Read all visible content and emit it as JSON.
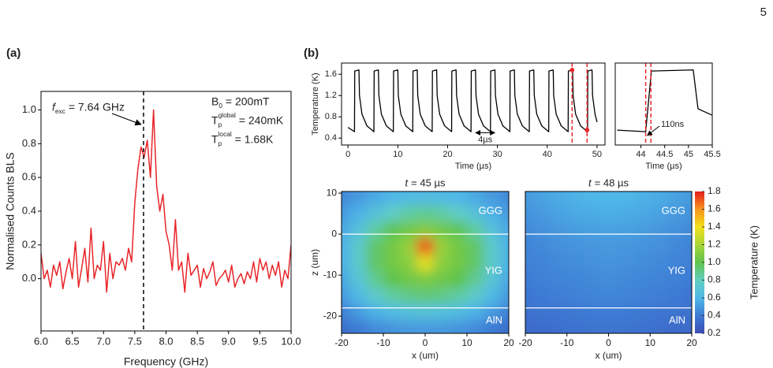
{
  "page_number": "5",
  "chart_data": [
    {
      "type": "line",
      "panel": "(a)",
      "xlabel": "Frequency (GHz)",
      "ylabel": "Normalised Counts BLS",
      "color": "#e8262a",
      "x": [
        6.0,
        6.05,
        6.1,
        6.15,
        6.2,
        6.25,
        6.3,
        6.35,
        6.4,
        6.45,
        6.5,
        6.55,
        6.6,
        6.65,
        6.7,
        6.75,
        6.8,
        6.85,
        6.9,
        6.95,
        7.0,
        7.05,
        7.1,
        7.15,
        7.2,
        7.25,
        7.3,
        7.35,
        7.4,
        7.45,
        7.5,
        7.55,
        7.6,
        7.65,
        7.7,
        7.75,
        7.8,
        7.85,
        7.9,
        7.95,
        8.0,
        8.05,
        8.1,
        8.15,
        8.2,
        8.25,
        8.3,
        8.35,
        8.4,
        8.45,
        8.5,
        8.55,
        8.6,
        8.65,
        8.7,
        8.75,
        8.8,
        8.85,
        8.9,
        8.95,
        9.0,
        9.05,
        9.1,
        9.15,
        9.2,
        9.25,
        9.3,
        9.35,
        9.4,
        9.45,
        9.5,
        9.55,
        9.6,
        9.65,
        9.7,
        9.75,
        9.8,
        9.85,
        9.9,
        9.95,
        10.0
      ],
      "values": [
        0.15,
        0.0,
        0.05,
        -0.05,
        0.08,
        0.02,
        0.1,
        -0.06,
        0.04,
        0.12,
        0.0,
        0.22,
        -0.05,
        0.06,
        0.18,
        -0.02,
        0.3,
        0.0,
        0.08,
        0.05,
        0.22,
        -0.08,
        0.15,
        0.0,
        0.1,
        0.08,
        0.12,
        0.05,
        0.18,
        0.1,
        0.45,
        0.65,
        0.78,
        0.72,
        0.82,
        0.6,
        1.0,
        0.55,
        0.4,
        0.5,
        0.28,
        0.2,
        0.05,
        0.35,
        0.05,
        0.1,
        -0.08,
        0.15,
        0.02,
        0.05,
        0.08,
        -0.05,
        0.06,
        0.0,
        0.04,
        0.1,
        -0.04,
        0.0,
        0.02,
        0.05,
        -0.02,
        0.08,
        -0.05,
        0.0,
        0.03,
        -0.03,
        0.04,
        0.0,
        0.1,
        -0.02,
        0.12,
        0.05,
        0.1,
        0.0,
        0.08,
        0.02,
        0.1,
        -0.05,
        0.05,
        0.0,
        0.2
      ],
      "xlim": [
        6,
        10
      ],
      "ylim": [
        -0.31,
        1.11
      ],
      "xticks": [
        {
          "value": 6,
          "label": "6.0"
        },
        6.5,
        {
          "value": 7,
          "label": "7.0"
        },
        7.5,
        {
          "value": 8,
          "label": "8.0"
        },
        8.5,
        {
          "value": 9,
          "label": "9.0"
        },
        9.5,
        {
          "value": 10,
          "label": "10.0"
        }
      ],
      "yticks": [
        {
          "value": 0,
          "label": "0.0"
        },
        0.2,
        0.4,
        0.6,
        0.8,
        {
          "value": 1,
          "label": "1.0"
        }
      ],
      "vline": 7.64,
      "annotation": {
        "main": "f",
        "sub": "exc",
        "rest": " = 7.64 GHz"
      },
      "params": [
        {
          "main": "B",
          "sub": "0",
          "rest": " = 200mT"
        },
        {
          "main": "T",
          "sub": "p",
          "sup": "global",
          "rest": " = 240mK"
        },
        {
          "main": "T",
          "sub": "p",
          "sup": "local",
          "rest": " = 1.68K"
        }
      ]
    },
    {
      "type": "line",
      "panel": "(b)",
      "xlabel": "Time (µs)",
      "ylabel": "Temperature (K)",
      "color": "#000000",
      "x": [
        0,
        1.3,
        1.35,
        2.2,
        2.3,
        2.8,
        3.8,
        5.2,
        5.25,
        6.1,
        6.2,
        6.7,
        7.7,
        9.1,
        9.15,
        10,
        10.1,
        10.6,
        11.6,
        13,
        13.05,
        13.9,
        14,
        14.5,
        15.5,
        16.9,
        16.95,
        17.8,
        17.9,
        18.4,
        19.4,
        20.8,
        20.85,
        21.7,
        21.8,
        22.3,
        23.3,
        24.7,
        24.75,
        25.6,
        25.7,
        26.2,
        27.2,
        28.6,
        28.65,
        29.5,
        29.6,
        30.1,
        31.1,
        32.5,
        32.55,
        33.4,
        33.5,
        34,
        35,
        36.4,
        36.45,
        37.3,
        37.4,
        37.9,
        38.9,
        40.3,
        40.35,
        41.2,
        41.3,
        41.8,
        42.8,
        44.2,
        44.25,
        45.1,
        45.2,
        45.7,
        46.7,
        48.1,
        48.15,
        49,
        49.1,
        49.6,
        50
      ],
      "values": [
        0.6,
        0.52,
        1.66,
        1.68,
        1.2,
        0.85,
        0.63,
        0.52,
        1.66,
        1.68,
        1.2,
        0.85,
        0.63,
        0.52,
        1.66,
        1.68,
        1.2,
        0.85,
        0.63,
        0.52,
        1.66,
        1.68,
        1.2,
        0.85,
        0.63,
        0.52,
        1.66,
        1.68,
        1.2,
        0.85,
        0.63,
        0.52,
        1.66,
        1.68,
        1.2,
        0.85,
        0.63,
        0.52,
        1.66,
        1.68,
        1.2,
        0.85,
        0.63,
        0.52,
        1.66,
        1.68,
        1.2,
        0.85,
        0.63,
        0.52,
        1.66,
        1.68,
        1.2,
        0.85,
        0.63,
        0.52,
        1.66,
        1.68,
        1.2,
        0.85,
        0.63,
        0.52,
        1.66,
        1.68,
        1.2,
        0.85,
        0.63,
        0.52,
        1.66,
        1.68,
        1.2,
        0.85,
        0.63,
        0.52,
        1.66,
        1.68,
        1.2,
        0.85,
        0.7
      ],
      "xlim": [
        -1.3,
        51.6
      ],
      "ylim": [
        0.27,
        1.81
      ],
      "xticks": [
        0,
        10,
        20,
        30,
        40,
        50
      ],
      "yticks": [
        0.4,
        0.8,
        1.2,
        1.6
      ],
      "markers": {
        "x": [
          45,
          48
        ],
        "y": [
          1.68,
          0.55
        ],
        "color": "#e8262a"
      },
      "vlines": {
        "x": [
          45,
          48
        ],
        "color": "#e8262a"
      },
      "annotation": {
        "text": "4µs",
        "x": [
          25.6,
          29.5
        ],
        "y": 0.5
      }
    },
    {
      "type": "line",
      "xlabel": "Time (µs)",
      "color": "#000000",
      "x": [
        43.5,
        44.1,
        44.22,
        45.1,
        45.2,
        45.5
      ],
      "values": [
        0.55,
        0.52,
        1.66,
        1.68,
        0.95,
        0.83
      ],
      "xlim": [
        43.46,
        45.5
      ],
      "ylim": [
        0.27,
        1.81
      ],
      "xticks": [
        44,
        44.5,
        45,
        45.5
      ],
      "vlines": {
        "x": [
          44.1,
          44.21
        ],
        "color": "#e8262a"
      },
      "annotation": {
        "text": "110ns"
      }
    },
    {
      "type": "heatmap",
      "title": {
        "var": "t",
        "rest": "= 45 µs"
      },
      "xlabel": "x (um)",
      "ylabel": "z (um)",
      "x": [
        -20,
        -16,
        -12,
        -8,
        -4,
        0,
        4,
        8,
        12,
        16,
        20
      ],
      "y": [
        9,
        5,
        1,
        -3,
        -7,
        -11,
        -15,
        -19,
        -23
      ],
      "values": [
        [
          0.45,
          0.5,
          0.55,
          0.6,
          0.62,
          0.63,
          0.62,
          0.6,
          0.55,
          0.5,
          0.45
        ],
        [
          0.5,
          0.58,
          0.68,
          0.78,
          0.85,
          0.88,
          0.85,
          0.78,
          0.68,
          0.58,
          0.5
        ],
        [
          0.55,
          0.68,
          0.85,
          0.98,
          1.05,
          1.1,
          1.05,
          0.98,
          0.85,
          0.68,
          0.55
        ],
        [
          0.58,
          0.75,
          0.95,
          1.05,
          1.15,
          1.7,
          1.15,
          1.05,
          0.95,
          0.75,
          0.58
        ],
        [
          0.58,
          0.75,
          0.95,
          1.05,
          1.12,
          1.35,
          1.12,
          1.05,
          0.95,
          0.75,
          0.58
        ],
        [
          0.55,
          0.7,
          0.88,
          1.0,
          1.05,
          1.08,
          1.05,
          1.0,
          0.88,
          0.7,
          0.55
        ],
        [
          0.5,
          0.62,
          0.75,
          0.85,
          0.9,
          0.92,
          0.9,
          0.85,
          0.75,
          0.62,
          0.5
        ],
        [
          0.42,
          0.5,
          0.58,
          0.63,
          0.66,
          0.68,
          0.66,
          0.63,
          0.58,
          0.5,
          0.42
        ],
        [
          0.35,
          0.4,
          0.45,
          0.48,
          0.5,
          0.5,
          0.5,
          0.48,
          0.45,
          0.4,
          0.35
        ]
      ],
      "xlim": [
        -20,
        20
      ],
      "ylim": [
        -24.2,
        10.4
      ],
      "xticks": [
        -20,
        -10,
        0,
        10,
        20
      ],
      "yticks": [
        10,
        0,
        -10,
        -20
      ],
      "layers": [
        "GGG",
        "YIG",
        "AlN"
      ],
      "boundaries": [
        0,
        -18
      ]
    },
    {
      "type": "heatmap",
      "title": {
        "var": "t",
        "rest": "= 48 µs"
      },
      "xlabel": "x (um)",
      "x": [
        -20,
        -16,
        -12,
        -8,
        -4,
        0,
        4,
        8,
        12,
        16,
        20
      ],
      "y": [
        9,
        5,
        1,
        -3,
        -7,
        -11,
        -15,
        -19,
        -23
      ],
      "values": [
        [
          0.5,
          0.53,
          0.56,
          0.58,
          0.6,
          0.6,
          0.6,
          0.58,
          0.56,
          0.53,
          0.5
        ],
        [
          0.48,
          0.5,
          0.53,
          0.55,
          0.56,
          0.57,
          0.56,
          0.55,
          0.53,
          0.5,
          0.48
        ],
        [
          0.45,
          0.47,
          0.49,
          0.51,
          0.52,
          0.52,
          0.52,
          0.51,
          0.49,
          0.47,
          0.45
        ],
        [
          0.43,
          0.45,
          0.47,
          0.48,
          0.49,
          0.5,
          0.49,
          0.48,
          0.47,
          0.45,
          0.43
        ],
        [
          0.42,
          0.43,
          0.45,
          0.46,
          0.47,
          0.48,
          0.47,
          0.46,
          0.45,
          0.43,
          0.42
        ],
        [
          0.4,
          0.42,
          0.43,
          0.44,
          0.45,
          0.46,
          0.45,
          0.44,
          0.43,
          0.42,
          0.4
        ],
        [
          0.38,
          0.4,
          0.41,
          0.42,
          0.43,
          0.44,
          0.43,
          0.42,
          0.41,
          0.4,
          0.38
        ],
        [
          0.36,
          0.37,
          0.38,
          0.39,
          0.4,
          0.4,
          0.4,
          0.39,
          0.38,
          0.37,
          0.36
        ],
        [
          0.33,
          0.34,
          0.35,
          0.36,
          0.37,
          0.37,
          0.37,
          0.36,
          0.35,
          0.34,
          0.33
        ]
      ],
      "xlim": [
        -20,
        20
      ],
      "ylim": [
        -24.2,
        10.4
      ],
      "xticks": [
        -20,
        -10,
        0,
        10,
        20
      ],
      "layers": [
        "GGG",
        "YIG",
        "AlN"
      ],
      "boundaries": [
        0,
        -18
      ],
      "colorbar": {
        "label": "Temperature (K)",
        "clim": [
          0.2,
          1.8
        ],
        "ticks": [
          0.2,
          0.4,
          0.6,
          0.8,
          {
            "value": 1,
            "label": "1.0"
          },
          1.2,
          1.4,
          1.6,
          1.8
        ],
        "colors": [
          "#3b4cb5",
          "#3e7bd4",
          "#4fb8e8",
          "#62cfc0",
          "#5fc34c",
          "#a8d536",
          "#f3e11c",
          "#f7941d",
          "#e41e1c"
        ]
      }
    }
  ]
}
